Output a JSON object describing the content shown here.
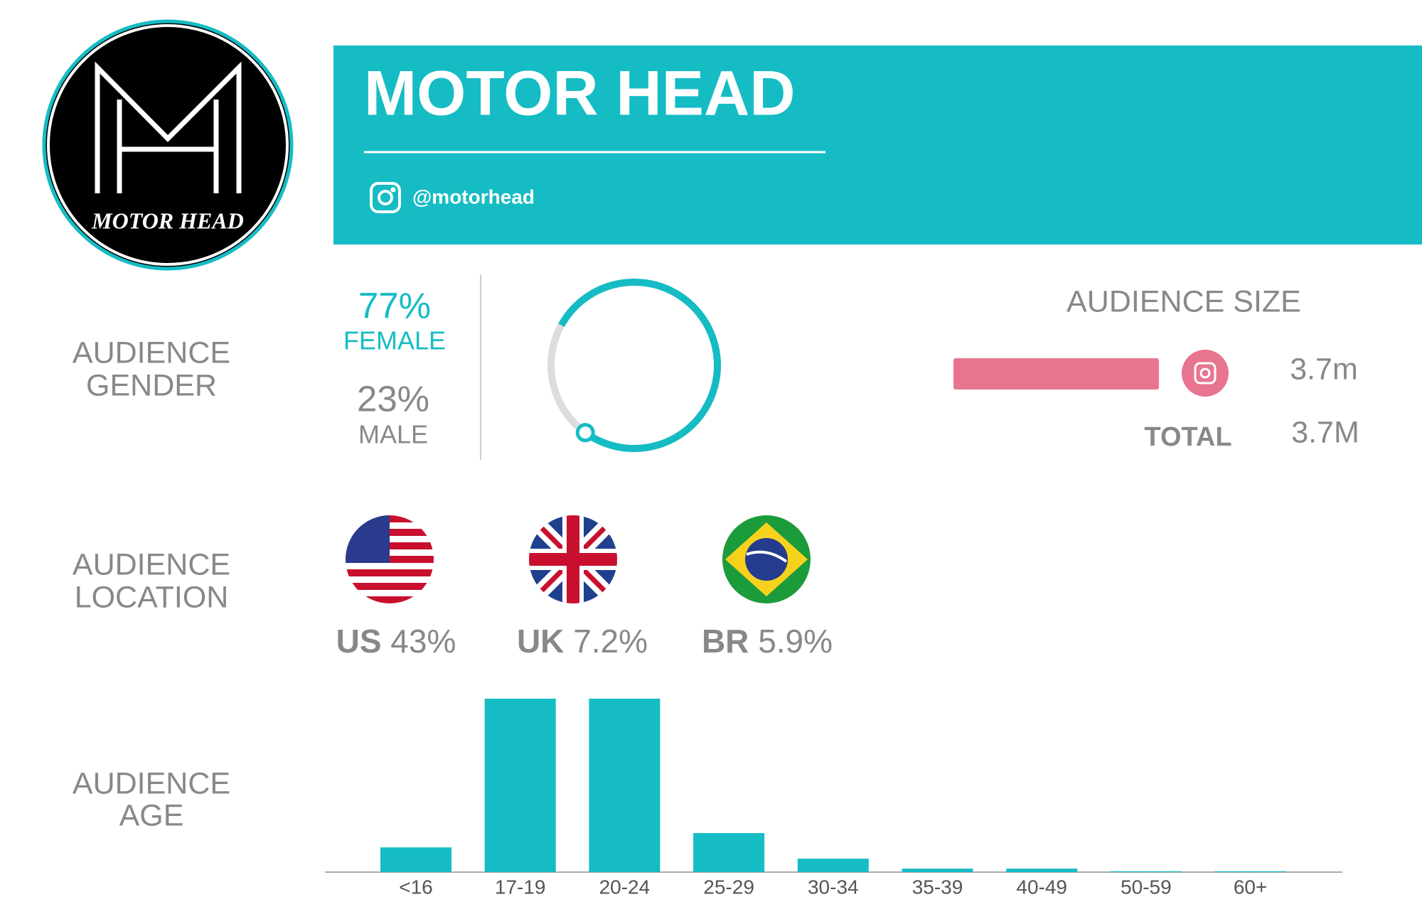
{
  "header": {
    "logo_text": "MOTOR HEAD",
    "title": "MOTOR HEAD",
    "handle": "@motorhead"
  },
  "gender": {
    "label": [
      "AUDIENCE",
      "GENDER"
    ],
    "female": {
      "value": 77,
      "value_label": "77%",
      "label": "FEMALE"
    },
    "male": {
      "value": 23,
      "value_label": "23%",
      "label": "MALE"
    }
  },
  "size": {
    "title": "AUDIENCE SIZE",
    "instagram": {
      "value": 3.7,
      "value_label": "3.7m"
    },
    "total_label": "TOTAL",
    "total": {
      "value": 3.7,
      "value_label": "3.7M"
    }
  },
  "location": {
    "label": [
      "AUDIENCE",
      "LOCATION"
    ],
    "countries": [
      {
        "code": "US",
        "share": "43%"
      },
      {
        "code": "UK",
        "share": "7.2%"
      },
      {
        "code": "BR",
        "share": "5.9%"
      }
    ]
  },
  "age": {
    "label": [
      "AUDIENCE",
      "AGE"
    ],
    "categories": [
      "<16",
      "17-19",
      "20-24",
      "25-29",
      "30-34",
      "35-39",
      "40-49",
      "50-59",
      "60+"
    ],
    "values": [
      5.7,
      40,
      40,
      9,
      3.1,
      0.8,
      0.8,
      0.2,
      0.2
    ],
    "color": "#15bcc4"
  }
}
